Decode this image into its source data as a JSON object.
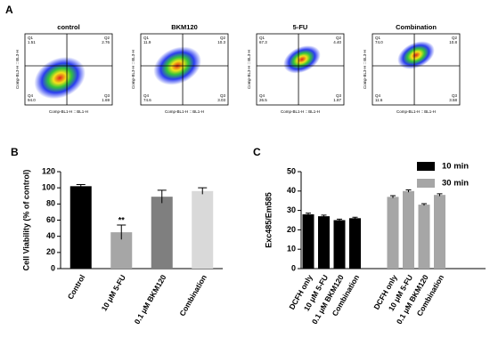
{
  "chart_data": [
    {
      "type": "quadrant",
      "panel": "A",
      "xlabel": "Comp-BL1-H :: BL1-H",
      "ylabel": "Comp-BL3-H :: BL3-H",
      "quadrant_names": [
        "Q1",
        "Q2",
        "Q4",
        "Q3"
      ],
      "plots": [
        {
          "title": "control",
          "values": [
            1.51,
            2.76,
            94.0,
            1.69
          ],
          "value_labels": [
            "1.51",
            "2.76",
            "94.0",
            "1.69"
          ]
        },
        {
          "title": "BKM120",
          "values": [
            11.9,
            10.3,
            74.6,
            3.03
          ],
          "value_labels": [
            "11.9",
            "10.3",
            "74.6",
            "3.03"
          ]
        },
        {
          "title": "5-FU",
          "values": [
            67.3,
            4.4,
            26.5,
            1.87
          ],
          "value_labels": [
            "67.3",
            "4.40",
            "26.5",
            "1.87"
          ]
        },
        {
          "title": "Combination",
          "values": [
            74.0,
            10.8,
            11.6,
            3.58
          ],
          "value_labels": [
            "74.0",
            "10.8",
            "11.6",
            "3.58"
          ]
        }
      ]
    },
    {
      "type": "bar",
      "panel": "B",
      "ylabel": "Cell Viability (% of control)",
      "categories": [
        "Control",
        "10 μM 5-FU",
        "0.1 μM BKM120",
        "Combination"
      ],
      "values": [
        102,
        45,
        89,
        96
      ],
      "errors": [
        2,
        9,
        8,
        4
      ],
      "colors": [
        "#000000",
        "#a6a6a6",
        "#7f7f7f",
        "#d9d9d9"
      ],
      "annotations": [
        null,
        "**",
        null,
        null
      ],
      "ylim": [
        0,
        120
      ],
      "yticks": [
        0,
        20,
        40,
        60,
        80,
        100,
        120
      ]
    },
    {
      "type": "groupbar",
      "panel": "C",
      "ylabel": "Exc485/Em585",
      "categories": [
        "DCFH only",
        "10 μM 5-FU",
        "0.1 μM BKM120",
        "Combination"
      ],
      "series": [
        {
          "name": "10 min",
          "color": "#000000",
          "values": [
            28,
            27,
            25,
            26
          ],
          "errors": [
            0.6,
            0.6,
            0.5,
            0.5
          ]
        },
        {
          "name": "30 min",
          "color": "#a6a6a6",
          "values": [
            37,
            40,
            33,
            38
          ],
          "errors": [
            0.6,
            0.6,
            0.5,
            0.6
          ]
        }
      ],
      "ylim": [
        0,
        50
      ],
      "yticks": [
        0,
        10,
        20,
        30,
        40,
        50
      ],
      "legend": "top-right"
    }
  ]
}
